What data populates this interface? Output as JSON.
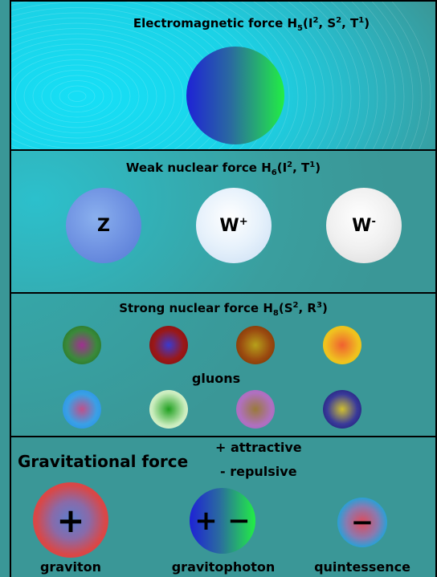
{
  "panels": {
    "electromagnetic": {
      "title_prefix": "Electromagnetic force H",
      "title_sub": "5",
      "title_args": [
        "(I",
        "2",
        ", S",
        "2",
        ", T",
        "1",
        ")"
      ]
    },
    "weak": {
      "title_prefix": "Weak nuclear force H",
      "title_sub": "6",
      "title_args": [
        "(I",
        "2",
        ", T",
        "1",
        ")"
      ],
      "particles": [
        "Z",
        "W",
        "+",
        "W",
        "-"
      ]
    },
    "strong": {
      "title_prefix": "Strong nuclear force H",
      "title_sub": "8",
      "title_args": [
        "(S",
        "2",
        ", R",
        "3",
        ")"
      ],
      "gluons_label": "gluons"
    },
    "gravitational": {
      "title": "Gravitational force",
      "legend_attractive": "+ attractive",
      "legend_repulsive": "- repulsive",
      "particles": {
        "graviton": {
          "label": "graviton",
          "sign": "+"
        },
        "gravitophoton": {
          "label": "gravitophoton",
          "sign_left": "+",
          "sign_right": "−"
        },
        "quintessence": {
          "label": "quintessence",
          "sign": "−"
        }
      }
    }
  },
  "colors": {
    "background": "#3a9797",
    "em_left": "#2020d8",
    "em_right": "#22ee44",
    "graviton_outer": "#e63a3a",
    "graviton_inner": "#5a7fd0",
    "quintessence_outer": "#1aa6dd",
    "quintessence_inner": "#d07070"
  }
}
